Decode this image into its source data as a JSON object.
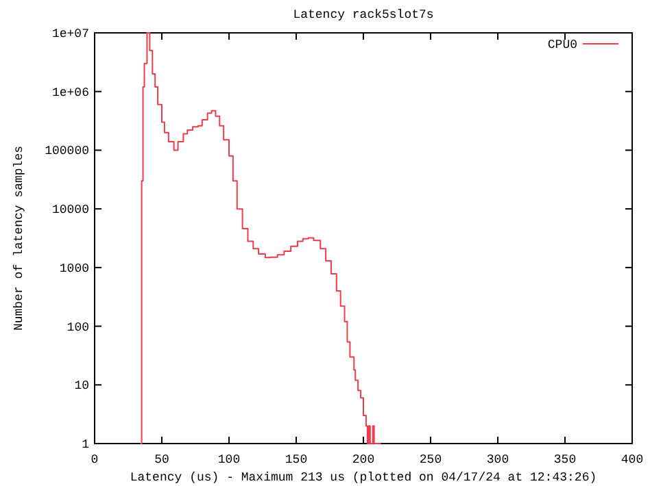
{
  "chart_data": {
    "type": "step",
    "title": "Latency rack5slot7s",
    "xlabel": "Latency (us) - Maximum 213 us (plotted on 04/17/24 at 12:43:26)",
    "ylabel": "Number of latency samples",
    "log": "y",
    "xlim": [
      0,
      400
    ],
    "xticks": [
      0,
      50,
      100,
      150,
      200,
      250,
      300,
      350,
      400
    ],
    "ylim": [
      1,
      10000000
    ],
    "yticks": [
      1,
      10,
      100,
      1000,
      10000,
      100000,
      {
        "value": 1000000,
        "label": "1e+06"
      },
      {
        "value": 10000000,
        "label": "1e+07"
      }
    ],
    "legend": "top right",
    "line_style": "solid",
    "series": [
      {
        "name": "CPU0",
        "color": "#f03c4a",
        "x": [
          34,
          35,
          36,
          37,
          39,
          41,
          43,
          45,
          47,
          50,
          52,
          55,
          59,
          62,
          66,
          69,
          73,
          77,
          80,
          84,
          87,
          90,
          93,
          96,
          100,
          103,
          106,
          110,
          114,
          118,
          122,
          127,
          131,
          136,
          141,
          146,
          151,
          155,
          159,
          163,
          168,
          172,
          176,
          180,
          183,
          186,
          188,
          190,
          193,
          194,
          196,
          198,
          200,
          202,
          203,
          204,
          205,
          206,
          207,
          208,
          209,
          211,
          213
        ],
        "values": [
          1,
          30000,
          1200000,
          3000000,
          10000000,
          5000000,
          2000000,
          1200000,
          600000,
          300000,
          200000,
          140000,
          100000,
          140000,
          190000,
          220000,
          250000,
          260000,
          330000,
          430000,
          470000,
          380000,
          260000,
          150000,
          80000,
          30000,
          10000,
          4600,
          2800,
          2100,
          1700,
          1480,
          1500,
          1650,
          1900,
          2300,
          2800,
          3100,
          3200,
          2900,
          2100,
          1300,
          780,
          400,
          220,
          120,
          54,
          30,
          18,
          12,
          8,
          6,
          3,
          2,
          1,
          2,
          1,
          1,
          2,
          1,
          1,
          1,
          1
        ]
      }
    ]
  }
}
